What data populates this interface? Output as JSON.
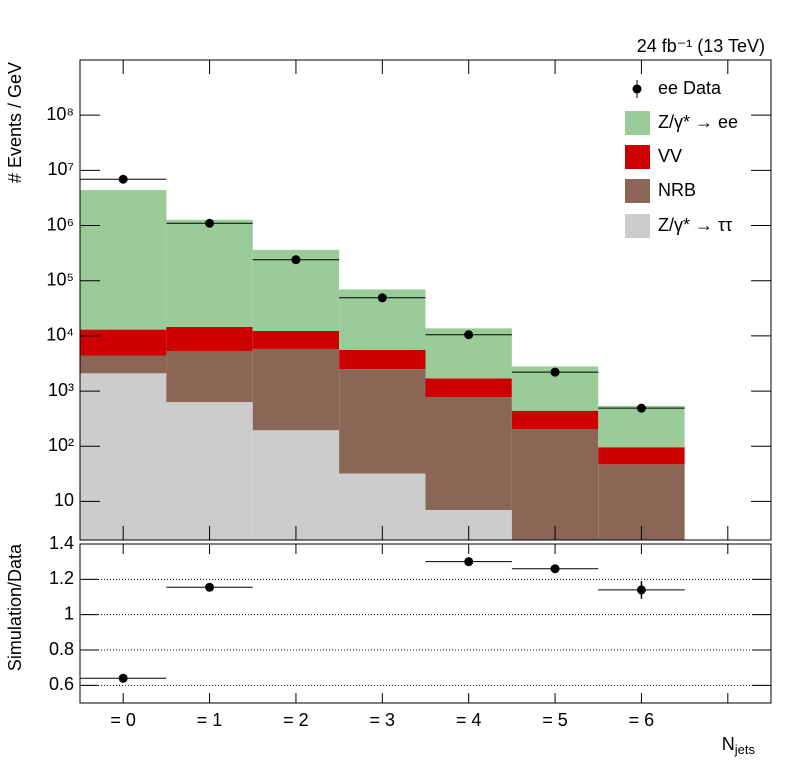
{
  "chart_data": [
    {
      "type": "stacked_hist",
      "annotation": "24 fb⁻¹ (13 TeV)",
      "y_label": "# Events / GeV",
      "categories": [
        "= 0",
        "= 1",
        "= 2",
        "= 3",
        "= 4",
        "= 5",
        "= 6",
        null
      ],
      "log_y": true,
      "ylim": [
        2,
        1000000000
      ],
      "yticks": [
        10,
        {
          "value": 100,
          "label": "10²"
        },
        {
          "value": 1000,
          "label": "10³"
        },
        {
          "value": 10000,
          "label": "10⁴"
        },
        {
          "value": 100000,
          "label": "10⁵"
        },
        {
          "value": 1000000,
          "label": "10⁶"
        },
        {
          "value": 10000000,
          "label": "10⁷"
        },
        {
          "value": 100000000,
          "label": "10⁸"
        }
      ],
      "data_points": {
        "name": "ee Data",
        "color": "#000000",
        "values": [
          6900000,
          1100000,
          240000,
          49000,
          10500,
          2200,
          490,
          null
        ]
      },
      "series": [
        {
          "name": "Z/γ* → ττ",
          "color": "#cccccc",
          "values": [
            2100,
            630,
            195,
            32,
            7,
            null,
            null,
            null
          ]
        },
        {
          "name": "NRB",
          "color": "#8b6656",
          "values": [
            2300,
            4700,
            5600,
            2470,
            770,
            205,
            47,
            null
          ]
        },
        {
          "name": "VV",
          "color": "#cc0000",
          "values": [
            8600,
            9200,
            6500,
            3100,
            920,
            235,
            49,
            null
          ]
        },
        {
          "name": "Z/γ* → ee",
          "color": "#99cc99",
          "values": [
            4390000,
            1250000,
            350000,
            64000,
            12000,
            2360,
            444,
            null
          ]
        }
      ],
      "legend": "upper right"
    },
    {
      "type": "errorbar",
      "y_label": "Simulation/Data",
      "x_label": "N",
      "x_label_sub": "jets",
      "categories": [
        "= 0",
        "= 1",
        "= 2",
        "= 3",
        "= 4",
        "= 5",
        "= 6",
        null
      ],
      "values": [
        0.64,
        1.155,
        null,
        null,
        1.3,
        1.26,
        1.14,
        null
      ],
      "errors": [
        0.005,
        0.005,
        null,
        null,
        0.008,
        0.015,
        0.05,
        null
      ],
      "color": "#000000",
      "ylim": [
        0.5,
        1.4
      ],
      "yticks": [
        0.6,
        0.8,
        1,
        1.2,
        1.4
      ],
      "grid": true
    }
  ]
}
